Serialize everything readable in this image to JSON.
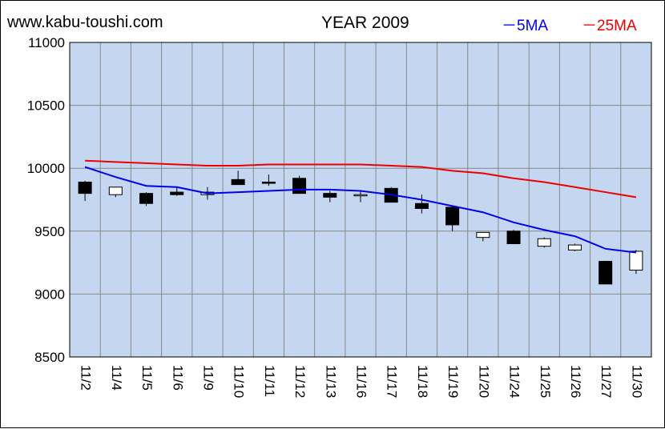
{
  "header": {
    "site": "www.kabu-toushi.com",
    "title": "YEAR 2009",
    "legend": [
      {
        "label": "－5MA",
        "color": "#0000ee"
      },
      {
        "label": "－25MA",
        "color": "#ee0000"
      }
    ]
  },
  "chart_data": {
    "type": "candlestick",
    "title": "YEAR 2009",
    "ylim": [
      8500,
      11000
    ],
    "yticks": [
      8500,
      9000,
      9500,
      10000,
      10500,
      11000
    ],
    "grid": true,
    "plot_background": "#c5d7f0",
    "categories": [
      "11/2",
      "11/4",
      "11/5",
      "11/6",
      "11/9",
      "11/10",
      "11/11",
      "11/12",
      "11/13",
      "11/16",
      "11/17",
      "11/18",
      "11/19",
      "11/20",
      "11/24",
      "11/25",
      "11/26",
      "11/27",
      "11/30"
    ],
    "candles": [
      {
        "open": 9890,
        "high": 9900,
        "low": 9740,
        "close": 9800
      },
      {
        "open": 9790,
        "high": 9850,
        "low": 9770,
        "close": 9850
      },
      {
        "open": 9800,
        "high": 9810,
        "low": 9700,
        "close": 9720
      },
      {
        "open": 9810,
        "high": 9850,
        "low": 9780,
        "close": 9790
      },
      {
        "open": 9790,
        "high": 9850,
        "low": 9750,
        "close": 9810
      },
      {
        "open": 9910,
        "high": 9980,
        "low": 9880,
        "close": 9870
      },
      {
        "open": 9890,
        "high": 9950,
        "low": 9860,
        "close": 9880
      },
      {
        "open": 9920,
        "high": 9940,
        "low": 9810,
        "close": 9800
      },
      {
        "open": 9800,
        "high": 9820,
        "low": 9730,
        "close": 9770
      },
      {
        "open": 9790,
        "high": 9820,
        "low": 9730,
        "close": 9790
      },
      {
        "open": 9840,
        "high": 9850,
        "low": 9730,
        "close": 9730
      },
      {
        "open": 9720,
        "high": 9790,
        "low": 9640,
        "close": 9680
      },
      {
        "open": 9690,
        "high": 9700,
        "low": 9500,
        "close": 9550
      },
      {
        "open": 9450,
        "high": 9490,
        "low": 9420,
        "close": 9490
      },
      {
        "open": 9500,
        "high": 9510,
        "low": 9400,
        "close": 9400
      },
      {
        "open": 9380,
        "high": 9450,
        "low": 9370,
        "close": 9440
      },
      {
        "open": 9350,
        "high": 9400,
        "low": 9340,
        "close": 9390
      },
      {
        "open": 9260,
        "high": 9260,
        "low": 9080,
        "close": 9080
      },
      {
        "open": 9190,
        "high": 9350,
        "low": 9160,
        "close": 9340
      }
    ],
    "series": [
      {
        "name": "5MA",
        "color": "#0000ee",
        "values": [
          10010,
          9930,
          9860,
          9850,
          9800,
          9810,
          9820,
          9830,
          9830,
          9820,
          9790,
          9750,
          9700,
          9650,
          9570,
          9510,
          9460,
          9360,
          9330
        ]
      },
      {
        "name": "25MA",
        "color": "#ee0000",
        "values": [
          10060,
          10050,
          10040,
          10030,
          10020,
          10020,
          10030,
          10030,
          10030,
          10030,
          10020,
          10010,
          9980,
          9960,
          9920,
          9890,
          9850,
          9810,
          9770
        ]
      }
    ],
    "up_color": "#ffffff",
    "down_color": "#000000"
  }
}
